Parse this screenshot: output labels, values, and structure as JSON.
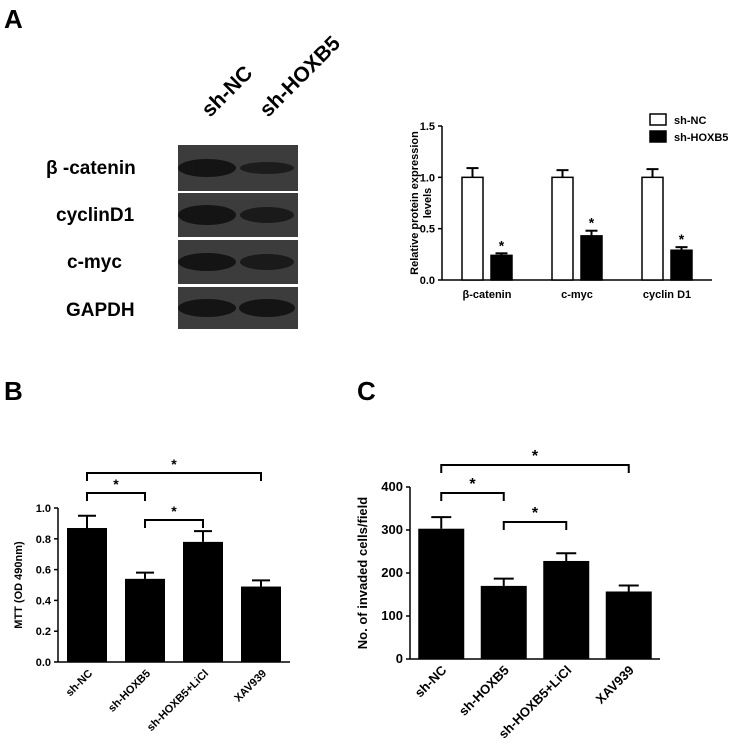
{
  "panels": {
    "A": "A",
    "B": "B",
    "C": "C"
  },
  "western_blot": {
    "lanes": [
      "sh-NC",
      "sh-HOXB5"
    ],
    "rows": [
      "β -catenin",
      "cyclinD1",
      "c-myc",
      "GAPDH"
    ]
  },
  "colors": {
    "bar_dark": "#000000",
    "bar_light": "#ffffff",
    "blot_background": "#3c3c3c",
    "band": "#141414"
  },
  "chart_data": [
    {
      "id": "A",
      "type": "bar",
      "categories": [
        "β-catenin",
        "c-myc",
        "cyclin D1"
      ],
      "series": [
        {
          "name": "sh-NC",
          "values": [
            1.0,
            1.0,
            1.0
          ],
          "errors": [
            0.09,
            0.07,
            0.08
          ],
          "color": "#ffffff"
        },
        {
          "name": "sh-HOXB5",
          "values": [
            0.24,
            0.43,
            0.29
          ],
          "errors": [
            0.02,
            0.05,
            0.03
          ],
          "color": "#000000"
        }
      ],
      "ylabel": "Relative protein expression\nlevels",
      "xlabel": "",
      "ylim": [
        0,
        1.5
      ],
      "yticks": [
        "0.0",
        "0.5",
        "1.0",
        "1.5"
      ],
      "annotations": [
        "*",
        "*",
        "*"
      ],
      "legend_position": "top-right"
    },
    {
      "id": "B",
      "type": "bar",
      "categories": [
        "sh-NC",
        "sh-HOXB5",
        "sh-HOXB5+LiCl",
        "XAV939"
      ],
      "values": [
        0.87,
        0.54,
        0.78,
        0.49
      ],
      "errors": [
        0.08,
        0.04,
        0.07,
        0.04
      ],
      "ylabel": "MTT (OD 490nm)",
      "xlabel": "",
      "ylim": [
        0,
        1.0
      ],
      "yticks": [
        "0.0",
        "0.2",
        "0.4",
        "0.6",
        "0.8",
        "1.0"
      ],
      "significance": [
        {
          "from": 0,
          "to": 1,
          "label": "*"
        },
        {
          "from": 1,
          "to": 2,
          "label": "*"
        },
        {
          "from": 0,
          "to": 3,
          "label": "*"
        }
      ]
    },
    {
      "id": "C",
      "type": "bar",
      "categories": [
        "sh-NC",
        "sh-HOXB5",
        "sh-HOXB5+LiCl",
        "XAV939"
      ],
      "values": [
        303,
        170,
        228,
        157
      ],
      "errors": [
        27,
        17,
        18,
        14
      ],
      "ylabel": "No. of invaded cells/field",
      "xlabel": "",
      "ylim": [
        0,
        400
      ],
      "yticks": [
        "0",
        "100",
        "200",
        "300",
        "400"
      ],
      "significance": [
        {
          "from": 0,
          "to": 1,
          "label": "*"
        },
        {
          "from": 1,
          "to": 2,
          "label": "*"
        },
        {
          "from": 0,
          "to": 3,
          "label": "*"
        }
      ]
    }
  ]
}
